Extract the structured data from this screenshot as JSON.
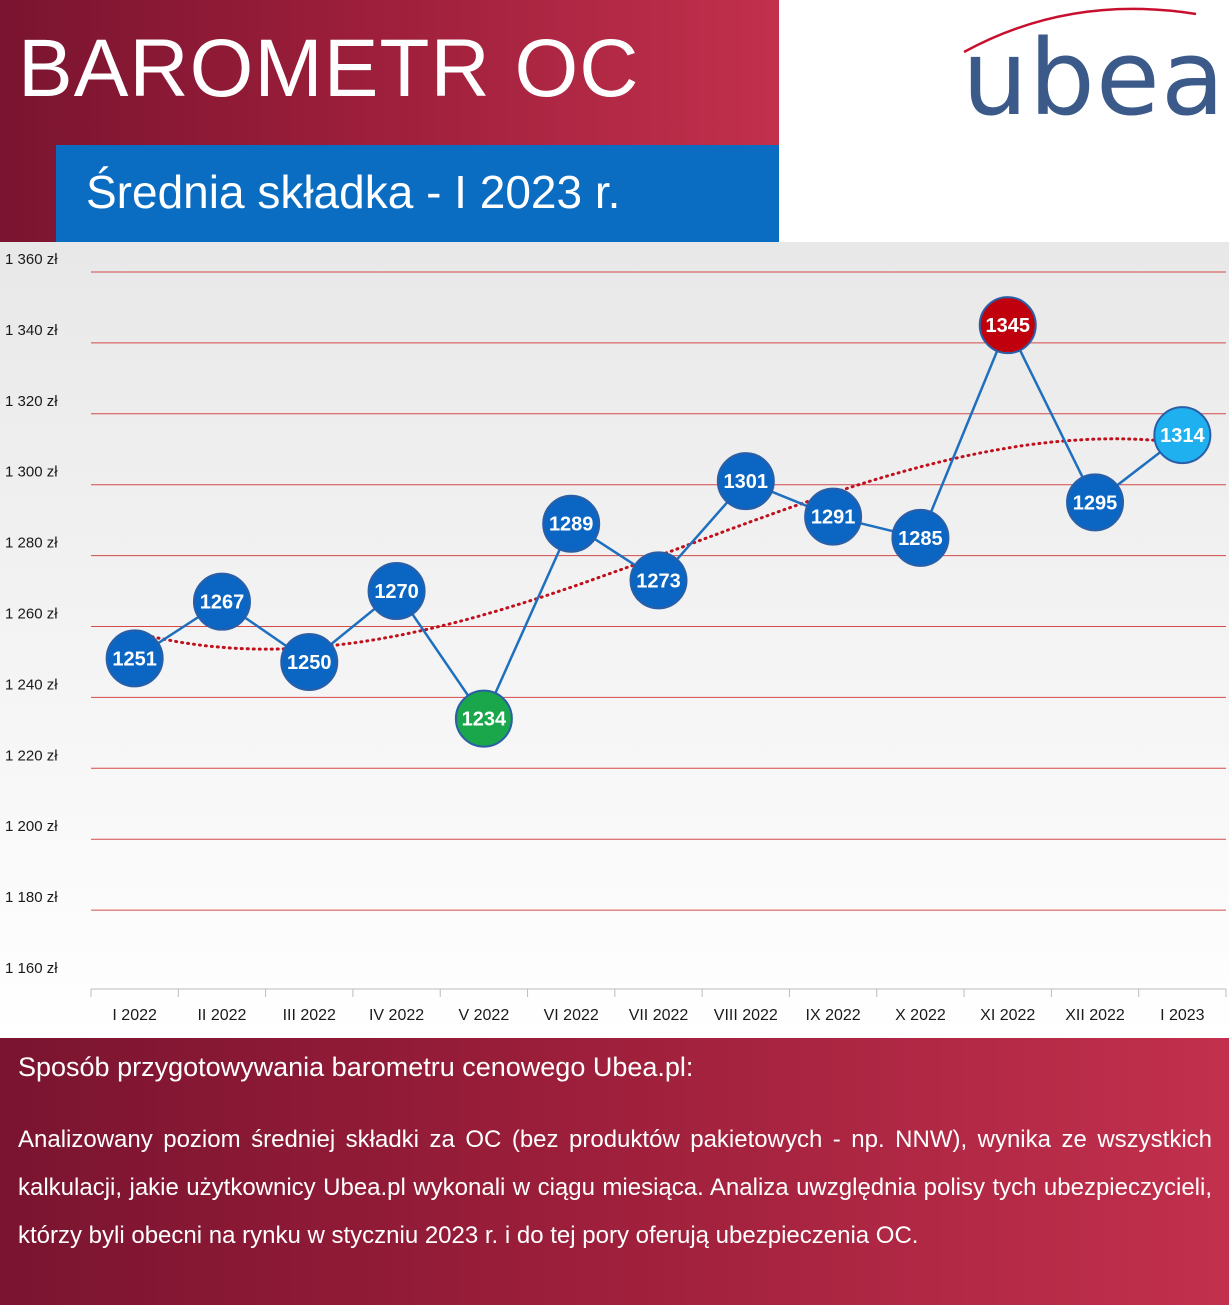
{
  "header": {
    "title": "BAROMETR OC",
    "subtitle": "Średnia składka - I 2023 r.",
    "logo_text": "ubea"
  },
  "colors": {
    "header_gradient": [
      "#7a1430",
      "#c2304d"
    ],
    "subtitle_box": "#0a6dc2",
    "line": "#1f6fbf",
    "point_default": "#0a66c2",
    "point_min": "#1aa64b",
    "point_max": "#c0000c",
    "point_latest": "#1fb0f0",
    "trendline": "#c0101c",
    "gridline": "#d44a4a"
  },
  "chart_data": {
    "type": "line",
    "title": "",
    "xlabel": "",
    "ylabel": "",
    "categories": [
      "I 2022",
      "II 2022",
      "III 2022",
      "IV 2022",
      "V 2022",
      "VI 2022",
      "VII 2022",
      "VIII 2022",
      "IX 2022",
      "X 2022",
      "XI 2022",
      "XII 2022",
      "I 2023"
    ],
    "series": [
      {
        "values": [
          1251,
          1267,
          1250,
          1270,
          1234,
          1289,
          1273,
          1301,
          1291,
          1285,
          1345,
          1295,
          1314
        ]
      }
    ],
    "point_highlight": [
      "default",
      "default",
      "default",
      "default",
      "min",
      "default",
      "default",
      "default",
      "default",
      "default",
      "max",
      "default",
      "latest"
    ],
    "trendline": {
      "type": "polynomial",
      "style": "dotted",
      "color": "#c0101c"
    },
    "yticks": [
      "1 160 zł",
      "1 180 zł",
      "1 200 zł",
      "1 220 zł",
      "1 240 zł",
      "1 260 zł",
      "1 280 zł",
      "1 300 zł",
      "1 320 zł",
      "1 340 zł",
      "1 360 zł"
    ],
    "ylim": [
      1160,
      1360
    ],
    "grid": true,
    "legend": "none"
  },
  "methodology": {
    "title": "Sposób przygotowywania barometru cenowego Ubea.pl:",
    "text": "Analizowany poziom średniej składki za OC (bez produktów pakietowych - np. NNW), wynika ze wszystkich kalkulacji, jakie użytkownicy Ubea.pl wykonali w ciągu miesiąca. Analiza uwzględnia polisy tych ubezpieczycieli, którzy byli obecni na rynku w styczniu 2023 r. i do tej pory oferują ubezpieczenia OC."
  }
}
